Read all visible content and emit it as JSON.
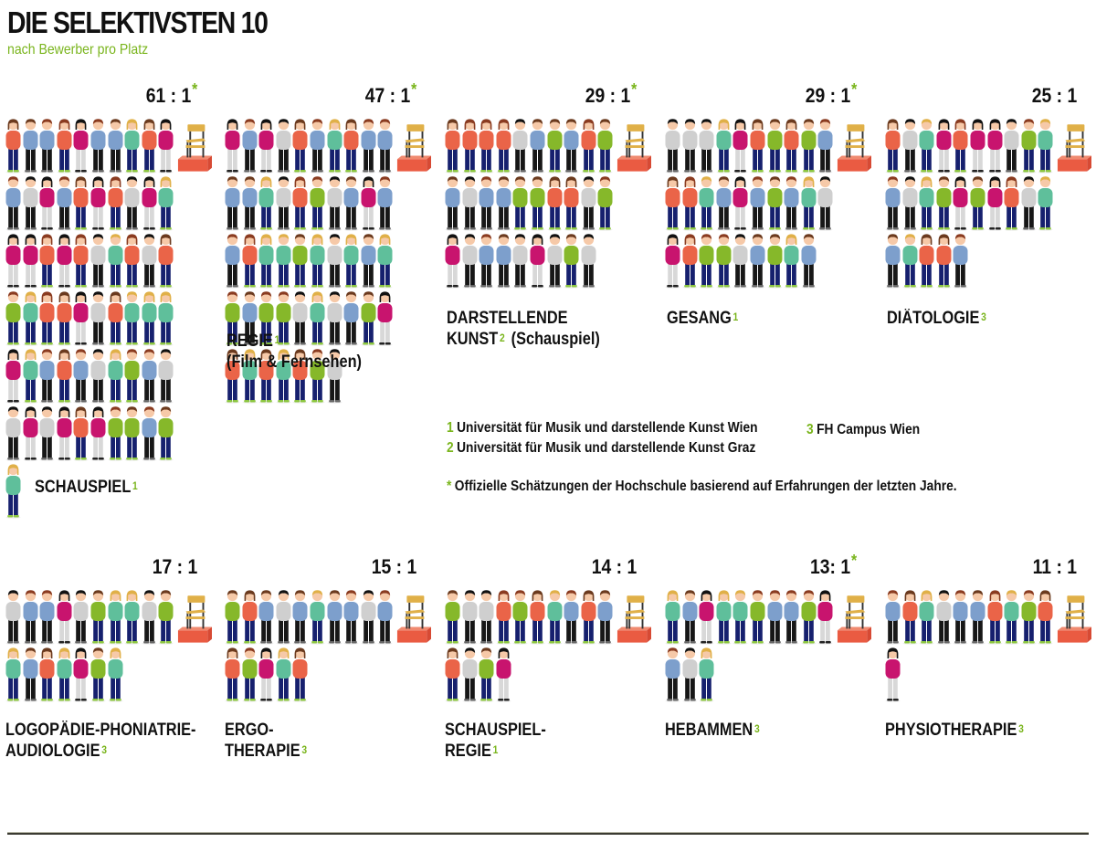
{
  "header": {
    "title": "DIE SELEKTIVSTEN 10",
    "subtitle": "nach Bewerber pro Platz"
  },
  "colors": {
    "accent": "#7ab51d",
    "shirts": [
      "#c8146e",
      "#86b82a",
      "#7d9fcc",
      "#ea6448",
      "#5fbf9b",
      "#cfcfcf"
    ],
    "pants_dark": "#16206e",
    "pants_black": "#171717",
    "pants_light": "#d8d8d8",
    "hair": [
      "#111111",
      "#6b3a1e",
      "#8a3b20",
      "#e0b048"
    ],
    "skin": "#f6c9a8",
    "chair": "#e0b048",
    "platform": "#ea5b42"
  },
  "chart_data": {
    "type": "pictogram",
    "title": "DIE SELEKTIVSTEN 10",
    "subtitle": "nach Bewerber pro Platz",
    "unit": "Bewerber pro Platz",
    "icon_per_unit": 1,
    "categories": [
      {
        "name": "SCHAUSPIEL",
        "line2": "",
        "note": "1",
        "ratio_label": "61 : 1",
        "applicants": 61,
        "places": 1,
        "estimated": true
      },
      {
        "name": "REGIE",
        "line2": "(Film & Fernsehen)",
        "note": "1",
        "ratio_label": "47 : 1",
        "applicants": 47,
        "places": 1,
        "estimated": true
      },
      {
        "name": "DARSTELLENDE",
        "line2": "KUNST",
        "line2_suffix": "(Schauspiel)",
        "note": "2",
        "ratio_label": "29 : 1",
        "applicants": 29,
        "places": 1,
        "estimated": true
      },
      {
        "name": "GESANG",
        "line2": "",
        "note": "1",
        "ratio_label": "29 : 1",
        "applicants": 29,
        "places": 1,
        "estimated": true
      },
      {
        "name": "DIÄTOLOGIE",
        "line2": "",
        "note": "3",
        "ratio_label": "25 : 1",
        "applicants": 25,
        "places": 1,
        "estimated": false
      },
      {
        "name": "LOGOPÄDIE-PHONIATRIE-",
        "line2": "AUDIOLOGIE",
        "note": "3",
        "ratio_label": "17 : 1",
        "applicants": 17,
        "places": 1,
        "estimated": false
      },
      {
        "name": "ERGO-",
        "line2": "THERAPIE",
        "note": "3",
        "ratio_label": "15 : 1",
        "applicants": 15,
        "places": 1,
        "estimated": false
      },
      {
        "name": "SCHAUSPIEL-",
        "line2": "REGIE",
        "note": "1",
        "ratio_label": "14 : 1",
        "applicants": 14,
        "places": 1,
        "estimated": false
      },
      {
        "name": "HEBAMMEN",
        "line2": "",
        "note": "3",
        "ratio_label": "13: 1",
        "applicants": 13,
        "places": 1,
        "estimated": true
      },
      {
        "name": "PHYSIOTHERAPIE",
        "line2": "",
        "note": "3",
        "ratio_label": "11 : 1",
        "applicants": 11,
        "places": 1,
        "estimated": false
      }
    ],
    "legend": [
      {
        "num": "1",
        "text": "Universität für Musik und darstellende Kunst Wien"
      },
      {
        "num": "2",
        "text": "Universität für Musik und darstellende Kunst Graz"
      },
      {
        "num": "3",
        "text": "FH Campus Wien"
      }
    ],
    "footnote": {
      "mark": "*",
      "text": "Offizielle Schätzungen der Hochschule basierend auf Erfahrungen der letzten Jahre."
    },
    "star": "*"
  }
}
